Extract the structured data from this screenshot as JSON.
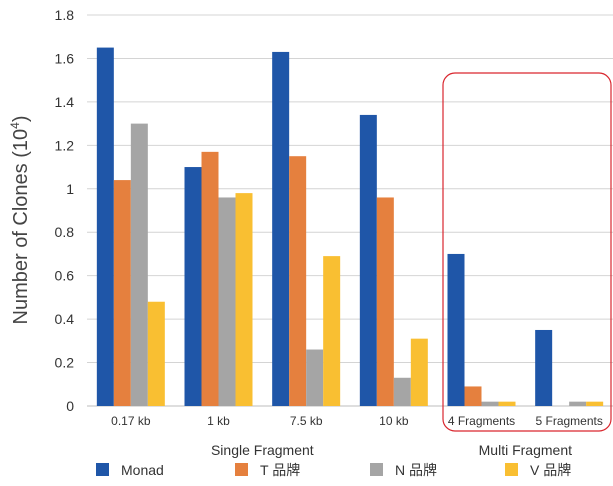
{
  "chart_data": {
    "type": "bar",
    "categories": [
      "0.17 kb",
      "1 kb",
      "7.5 kb",
      "10 kb",
      "4 Fragments",
      "5 Fragments"
    ],
    "groups": [
      {
        "label": "Single Fragment",
        "categories": [
          "0.17 kb",
          "1 kb",
          "7.5 kb",
          "10 kb"
        ]
      },
      {
        "label": "Multi Fragment",
        "categories": [
          "4 Fragments",
          "5 Fragments"
        ],
        "highlighted": true
      }
    ],
    "series": [
      {
        "name": "Monad",
        "color": "#1f56a8",
        "values": [
          1.65,
          1.1,
          1.63,
          1.34,
          0.7,
          0.35
        ]
      },
      {
        "name": "T 品牌",
        "color": "#e5803e",
        "values": [
          1.04,
          1.17,
          1.15,
          0.96,
          0.09,
          0
        ]
      },
      {
        "name": "N 品牌",
        "color": "#a5a5a5",
        "values": [
          1.3,
          0.96,
          0.26,
          0.13,
          0.02,
          0.02
        ]
      },
      {
        "name": "V 品牌",
        "color": "#f9bf32",
        "values": [
          0.48,
          0.98,
          0.69,
          0.31,
          0.02,
          0.02
        ]
      }
    ],
    "ylabel_main": "Number of Clones (10",
    "ylabel_sup": "4",
    "ylabel_end": ")",
    "ylim": [
      0,
      1.8
    ],
    "yticks": [
      "0",
      "0.2",
      "0.4",
      "0.6",
      "0.8",
      "1",
      "1.2",
      "1.4",
      "1.6",
      "1.8"
    ],
    "grid": true,
    "legend_position": "bottom",
    "highlight_color": "#d9262e"
  }
}
